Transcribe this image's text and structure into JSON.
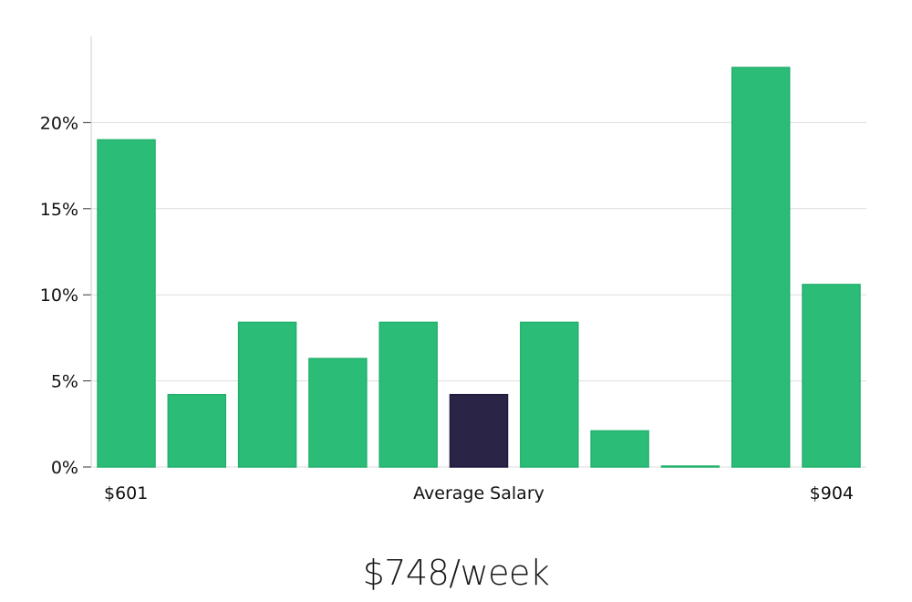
{
  "chart_data": {
    "type": "bar",
    "title": "",
    "xlabel": "Average Salary",
    "ylabel": "",
    "x_min_label": "$601",
    "x_max_label": "$904",
    "ylim": [
      0,
      25
    ],
    "yticks": [
      0,
      5,
      10,
      15,
      20
    ],
    "ytick_labels": [
      "0%",
      "5%",
      "10%",
      "15%",
      "20%"
    ],
    "grid": true,
    "values": [
      19.0,
      4.2,
      8.4,
      6.3,
      8.4,
      4.2,
      8.4,
      2.1,
      0.0,
      23.2,
      10.6
    ],
    "highlight_index": 5,
    "colors": {
      "bar": "#2bbd77",
      "bar_stroke": "#22b06c",
      "highlight": "#2a2547",
      "grid": "#dddddd",
      "axis": "#cccccc"
    }
  },
  "headline": "$748/week"
}
